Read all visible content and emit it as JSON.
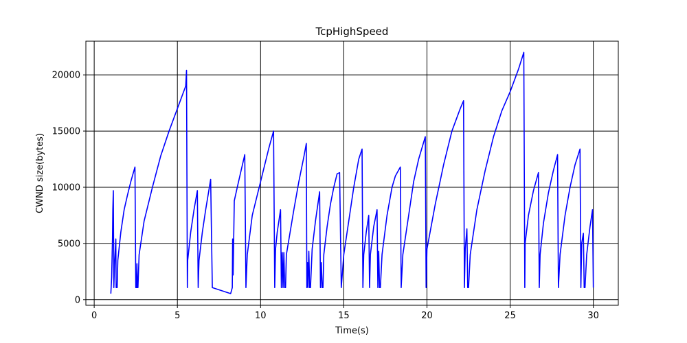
{
  "chart_data": {
    "type": "line",
    "title": "TcpHighSpeed",
    "xlabel": "Time(s)",
    "ylabel": "CWND size(bytes)",
    "xlim": [
      -0.5,
      31.5
    ],
    "ylim": [
      -500,
      23000
    ],
    "xticks": [
      0,
      5,
      10,
      15,
      20,
      25,
      30
    ],
    "yticks": [
      0,
      5000,
      10000,
      15000,
      20000
    ],
    "grid": true,
    "line_color": "#0000ff",
    "series": [
      {
        "values": [
          [
            1.0,
            536
          ],
          [
            1.05,
            2000
          ],
          [
            1.1,
            5500
          ],
          [
            1.12,
            8000
          ],
          [
            1.15,
            9700
          ],
          [
            1.18,
            1072
          ],
          [
            1.22,
            3000
          ],
          [
            1.3,
            5400
          ],
          [
            1.32,
            1072
          ],
          [
            1.38,
            1072
          ],
          [
            1.42,
            3500
          ],
          [
            1.6,
            6000
          ],
          [
            1.8,
            8000
          ],
          [
            2.0,
            9300
          ],
          [
            2.2,
            10500
          ],
          [
            2.45,
            11800
          ],
          [
            2.5,
            1072
          ],
          [
            2.55,
            1072
          ],
          [
            2.57,
            3200
          ],
          [
            2.6,
            1072
          ],
          [
            2.63,
            1072
          ],
          [
            2.7,
            4000
          ],
          [
            3.0,
            7000
          ],
          [
            3.5,
            10000
          ],
          [
            4.0,
            12800
          ],
          [
            4.5,
            15000
          ],
          [
            5.0,
            17000
          ],
          [
            5.5,
            19000
          ],
          [
            5.55,
            20400
          ],
          [
            5.6,
            1072
          ],
          [
            5.62,
            3500
          ],
          [
            5.8,
            6000
          ],
          [
            6.0,
            8000
          ],
          [
            6.2,
            9700
          ],
          [
            6.25,
            1072
          ],
          [
            6.3,
            3500
          ],
          [
            6.5,
            6000
          ],
          [
            6.7,
            8000
          ],
          [
            7.0,
            10700
          ],
          [
            7.1,
            1072
          ],
          [
            8.2,
            536
          ],
          [
            8.3,
            1072
          ],
          [
            8.32,
            5400
          ],
          [
            8.35,
            2200
          ],
          [
            8.38,
            5000
          ],
          [
            8.42,
            8800
          ],
          [
            8.6,
            10000
          ],
          [
            8.8,
            11300
          ],
          [
            9.05,
            12900
          ],
          [
            9.12,
            1072
          ],
          [
            9.2,
            4000
          ],
          [
            9.5,
            7500
          ],
          [
            10.0,
            10500
          ],
          [
            10.5,
            13500
          ],
          [
            10.78,
            15000
          ],
          [
            10.85,
            1072
          ],
          [
            10.9,
            4500
          ],
          [
            11.0,
            6000
          ],
          [
            11.2,
            8000
          ],
          [
            11.25,
            1072
          ],
          [
            11.3,
            4200
          ],
          [
            11.35,
            1072
          ],
          [
            11.4,
            4200
          ],
          [
            11.45,
            1072
          ],
          [
            11.5,
            1072
          ],
          [
            11.55,
            4000
          ],
          [
            12.0,
            8000
          ],
          [
            12.3,
            10500
          ],
          [
            12.6,
            12700
          ],
          [
            12.75,
            13900
          ],
          [
            12.78,
            1072
          ],
          [
            12.82,
            3300
          ],
          [
            12.85,
            1072
          ],
          [
            12.9,
            4300
          ],
          [
            12.95,
            1072
          ],
          [
            13.0,
            1072
          ],
          [
            13.1,
            4500
          ],
          [
            13.3,
            7000
          ],
          [
            13.55,
            9600
          ],
          [
            13.6,
            1072
          ],
          [
            13.65,
            3300
          ],
          [
            13.7,
            1072
          ],
          [
            13.75,
            1072
          ],
          [
            13.8,
            4000
          ],
          [
            14.0,
            6500
          ],
          [
            14.2,
            8500
          ],
          [
            14.4,
            10000
          ],
          [
            14.6,
            11200
          ],
          [
            14.75,
            11300
          ],
          [
            14.85,
            1072
          ],
          [
            15.0,
            4000
          ],
          [
            15.3,
            7000
          ],
          [
            15.6,
            10000
          ],
          [
            15.9,
            12500
          ],
          [
            16.1,
            13400
          ],
          [
            16.15,
            1072
          ],
          [
            16.2,
            4000
          ],
          [
            16.35,
            6000
          ],
          [
            16.5,
            7500
          ],
          [
            16.55,
            1072
          ],
          [
            16.6,
            4000
          ],
          [
            16.8,
            6500
          ],
          [
            17.0,
            8000
          ],
          [
            17.05,
            1072
          ],
          [
            17.1,
            4300
          ],
          [
            17.15,
            1072
          ],
          [
            17.2,
            1072
          ],
          [
            17.3,
            4000
          ],
          [
            17.6,
            7500
          ],
          [
            17.9,
            10000
          ],
          [
            18.1,
            11000
          ],
          [
            18.4,
            11800
          ],
          [
            18.45,
            1072
          ],
          [
            18.55,
            4000
          ],
          [
            18.9,
            7500
          ],
          [
            19.2,
            10500
          ],
          [
            19.5,
            12500
          ],
          [
            19.9,
            14500
          ],
          [
            19.95,
            1072
          ],
          [
            20.0,
            4500
          ],
          [
            20.5,
            8500
          ],
          [
            21.0,
            12000
          ],
          [
            21.5,
            15000
          ],
          [
            22.0,
            17000
          ],
          [
            22.2,
            17700
          ],
          [
            22.25,
            1072
          ],
          [
            22.3,
            4500
          ],
          [
            22.4,
            6300
          ],
          [
            22.45,
            1072
          ],
          [
            22.5,
            1072
          ],
          [
            22.6,
            4000
          ],
          [
            23.0,
            8000
          ],
          [
            23.5,
            11500
          ],
          [
            24.0,
            14500
          ],
          [
            24.5,
            16800
          ],
          [
            25.0,
            18500
          ],
          [
            25.5,
            20500
          ],
          [
            25.82,
            22000
          ],
          [
            25.88,
            1072
          ],
          [
            25.9,
            5000
          ],
          [
            26.1,
            7500
          ],
          [
            26.4,
            9700
          ],
          [
            26.7,
            11300
          ],
          [
            26.75,
            1072
          ],
          [
            26.8,
            4000
          ],
          [
            27.0,
            6800
          ],
          [
            27.3,
            9500
          ],
          [
            27.6,
            11500
          ],
          [
            27.85,
            12900
          ],
          [
            27.9,
            1072
          ],
          [
            28.0,
            4000
          ],
          [
            28.3,
            7500
          ],
          [
            28.6,
            10000
          ],
          [
            28.9,
            12000
          ],
          [
            29.2,
            13400
          ],
          [
            29.25,
            1072
          ],
          [
            29.3,
            5000
          ],
          [
            29.4,
            5900
          ],
          [
            29.45,
            1072
          ],
          [
            29.5,
            1072
          ],
          [
            29.6,
            4000
          ],
          [
            29.8,
            6500
          ],
          [
            29.95,
            8000
          ],
          [
            30.0,
            1072
          ]
        ]
      }
    ]
  }
}
